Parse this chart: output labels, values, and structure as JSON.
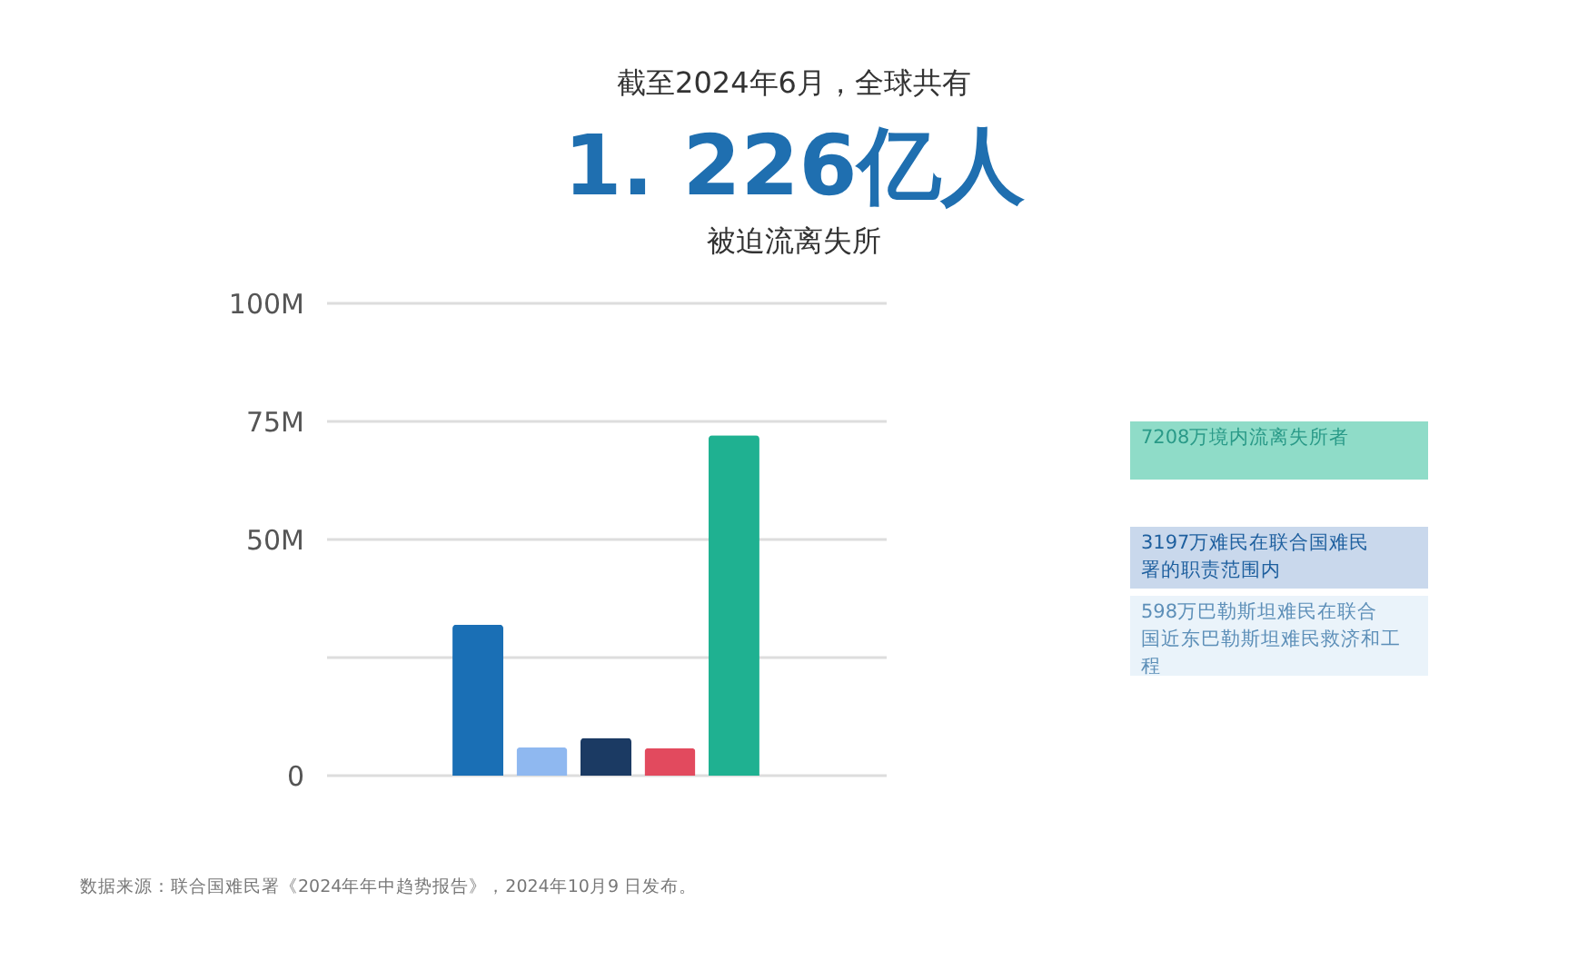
{
  "chart_data": {
    "type": "bar",
    "title": "1. 226亿人",
    "subtitle": "被迫流离失所",
    "categories": [
      null,
      null,
      null,
      null,
      null
    ],
    "values": [
      31.97,
      5.98,
      8.0,
      5.8,
      72.08
    ],
    "colors": [
      "#1a6fb5",
      "#8fb8f0",
      "#1b3a63",
      "#e24a5e",
      "#1fb191"
    ],
    "ylim": [
      0,
      100
    ],
    "yticks": [
      {
        "value": 0,
        "label": "0"
      },
      {
        "value": 25,
        "label": null
      },
      {
        "value": 50,
        "label": "50M"
      },
      {
        "value": 75,
        "label": "75M"
      },
      {
        "value": 100,
        "label": "100M"
      }
    ],
    "grid": "y",
    "annotations": [
      "截至2024年6月，全球共有",
      "7208万境内流离失所者",
      "3197万难民在联合国难民署的职责范围内",
      "598万巴勒斯坦难民在联合国近东巴勒斯坦难民救济和工程",
      "数据来源：联合国难民署《2024年年中趋势报告》，2024年10月9 日发布。"
    ]
  }
}
